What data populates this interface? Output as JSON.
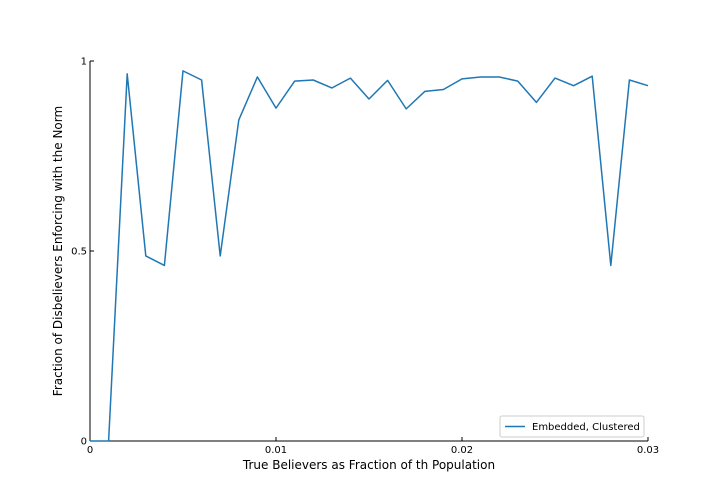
{
  "chart_data": {
    "type": "line",
    "title": "",
    "xlabel": "True Believers as Fraction of th Population",
    "ylabel": "Fraction of Disbelievers Enforcing with the Norm",
    "xlim": [
      0,
      0.03
    ],
    "ylim": [
      0,
      1
    ],
    "xticks": [
      0,
      0.01,
      0.02,
      0.03
    ],
    "xtick_labels": [
      "0",
      "0.01",
      "0.02",
      "0.03"
    ],
    "yticks": [
      0,
      0.5,
      1
    ],
    "ytick_labels": [
      "0",
      "0.5",
      "1"
    ],
    "grid": false,
    "legend_position": "bottom-right",
    "colors": {
      "series": "#1f77b4",
      "axis": "#000000",
      "legend_border": "#cccccc"
    },
    "series": [
      {
        "name": "Embedded, Clustered",
        "x": [
          0,
          0.001,
          0.002,
          0.003,
          0.004,
          0.005,
          0.006,
          0.007,
          0.008,
          0.009,
          0.01,
          0.011,
          0.012,
          0.013,
          0.014,
          0.015,
          0.016,
          0.017,
          0.018,
          0.019,
          0.02,
          0.021,
          0.022,
          0.023,
          0.024,
          0.025,
          0.026,
          0.027,
          0.028,
          0.029,
          0.03
        ],
        "values": [
          0,
          0,
          0.966,
          0.487,
          0.462,
          0.974,
          0.95,
          0.487,
          0.845,
          0.958,
          0.876,
          0.947,
          0.95,
          0.929,
          0.955,
          0.9,
          0.949,
          0.874,
          0.92,
          0.925,
          0.953,
          0.958,
          0.958,
          0.947,
          0.891,
          0.955,
          0.935,
          0.96,
          0.462,
          0.95,
          0.935
        ]
      }
    ]
  }
}
